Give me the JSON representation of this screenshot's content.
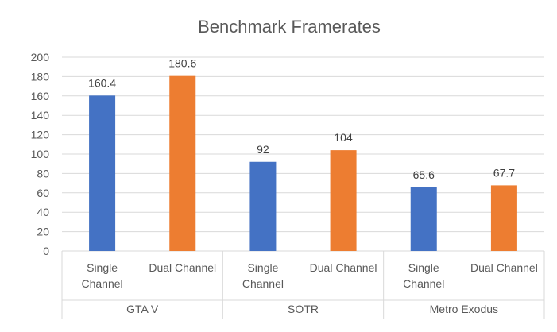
{
  "chart_data": {
    "type": "bar",
    "title": "Benchmark Framerates",
    "xlabel": "",
    "ylabel": "",
    "ylim": [
      0,
      200
    ],
    "yticks": [
      0,
      20,
      40,
      60,
      80,
      100,
      120,
      140,
      160,
      180,
      200
    ],
    "grid": true,
    "legend": "none",
    "groups": [
      {
        "name": "GTA V",
        "bars": [
          {
            "label_lines": [
              "Single",
              "Channel"
            ],
            "value": 160.4,
            "value_label": "160.4",
            "color": "#4472C4"
          },
          {
            "label_lines": [
              "Dual Channel"
            ],
            "value": 180.6,
            "value_label": "180.6",
            "color": "#ED7D31"
          }
        ]
      },
      {
        "name": "SOTR",
        "bars": [
          {
            "label_lines": [
              "Single",
              "Channel"
            ],
            "value": 92,
            "value_label": "92",
            "color": "#4472C4"
          },
          {
            "label_lines": [
              "Dual Channel"
            ],
            "value": 104,
            "value_label": "104",
            "color": "#ED7D31"
          }
        ]
      },
      {
        "name": "Metro Exodus",
        "bars": [
          {
            "label_lines": [
              "Single",
              "Channel"
            ],
            "value": 65.6,
            "value_label": "65.6",
            "color": "#4472C4"
          },
          {
            "label_lines": [
              "Dual Channel"
            ],
            "value": 67.7,
            "value_label": "67.7",
            "color": "#ED7D31"
          }
        ]
      }
    ]
  }
}
